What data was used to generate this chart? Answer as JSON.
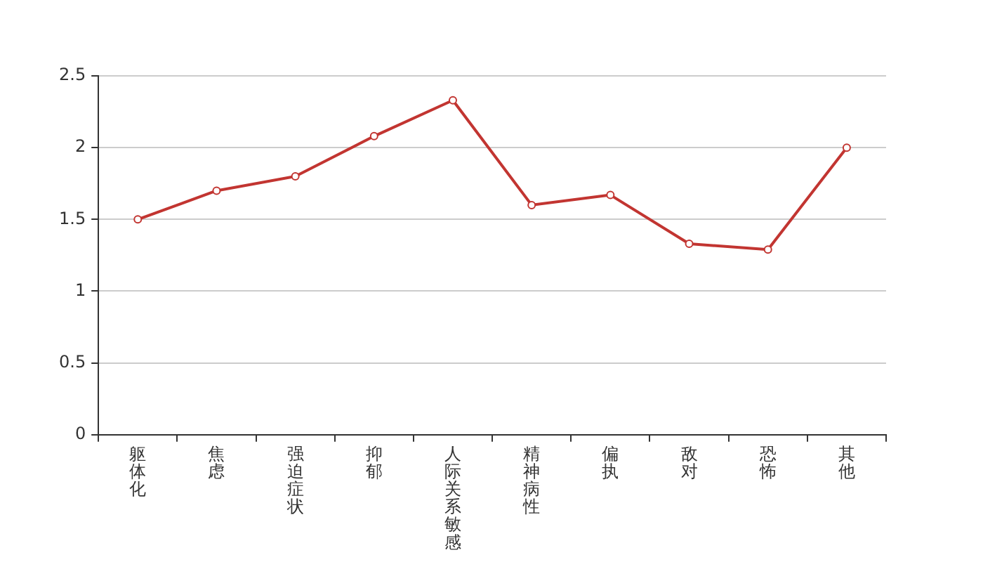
{
  "chart_data": {
    "type": "line",
    "categories": [
      "躯体化",
      "焦虑",
      "强迫症状",
      "抑郁",
      "人际关系敏感",
      "精神病性",
      "偏执",
      "敌对",
      "恐怖",
      "其他"
    ],
    "series": [
      {
        "color": "#c23531",
        "values": [
          1.5,
          1.7,
          1.8,
          2.08,
          2.33,
          1.6,
          1.67,
          1.33,
          1.29,
          2.0
        ]
      }
    ],
    "ylim": [
      0,
      2.5
    ],
    "yticks": [
      0,
      0.5,
      1,
      1.5,
      2,
      2.5
    ],
    "grid": "y",
    "marker": "circle",
    "line_style": "solid"
  }
}
